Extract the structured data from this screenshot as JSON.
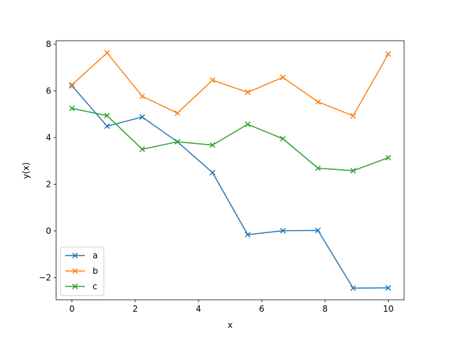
{
  "chart_data": {
    "type": "line",
    "title": "",
    "xlabel": "x",
    "ylabel": "y(x)",
    "xlim": [
      -0.5,
      10.5
    ],
    "ylim": [
      -2.95,
      8.15
    ],
    "xticks": [
      0,
      2,
      4,
      6,
      8,
      10
    ],
    "xtick_labels": [
      "0",
      "2",
      "4",
      "6",
      "8",
      "10"
    ],
    "yticks": [
      -2,
      0,
      2,
      4,
      6,
      8
    ],
    "ytick_labels": [
      "−2",
      "0",
      "2",
      "4",
      "6",
      "8"
    ],
    "grid": false,
    "legend_position": "lower-left",
    "marker": "x",
    "x": [
      0,
      1.111,
      2.222,
      3.333,
      4.444,
      5.556,
      6.667,
      7.778,
      8.889,
      10
    ],
    "series": [
      {
        "name": "a",
        "color": "#1f77b4",
        "values": [
          6.22,
          4.49,
          4.88,
          3.82,
          2.5,
          -0.16,
          0.01,
          0.02,
          -2.45,
          -2.44
        ]
      },
      {
        "name": "b",
        "color": "#ff7f0e",
        "values": [
          6.26,
          7.63,
          5.77,
          5.05,
          6.46,
          5.94,
          6.58,
          5.53,
          4.93,
          7.58
        ]
      },
      {
        "name": "c",
        "color": "#2ca02c",
        "values": [
          5.25,
          4.94,
          3.5,
          3.82,
          3.68,
          4.57,
          3.95,
          2.69,
          2.58,
          3.14
        ]
      }
    ]
  }
}
